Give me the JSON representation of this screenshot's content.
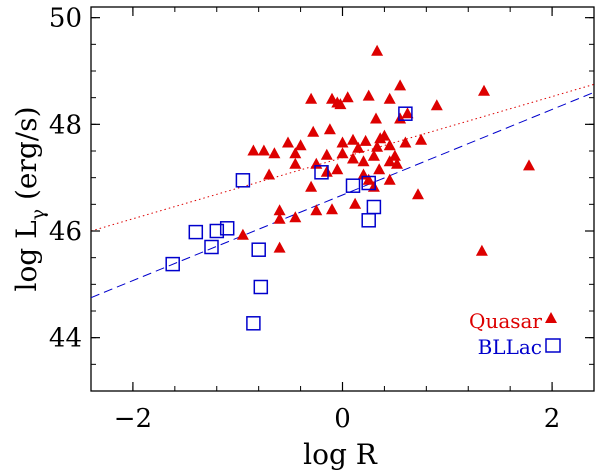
{
  "chart_data": {
    "type": "scatter",
    "xlabel": "log R",
    "ylabel_main": "log L",
    "ylabel_sub": "γ",
    "ylabel_unit": " (erg/s)",
    "xlim": [
      -2.4,
      2.4
    ],
    "ylim": [
      43,
      50.2
    ],
    "x_ticks": [
      -2,
      0,
      2
    ],
    "x_tick_labels": [
      "−2",
      "0",
      "2"
    ],
    "y_ticks": [
      44,
      46,
      48,
      50
    ],
    "y_tick_labels": [
      "44",
      "46",
      "48",
      "50"
    ],
    "colors": {
      "quasar": "#dd0000",
      "bllac": "#0000cc"
    },
    "legend_position": "bottom-right",
    "series": [
      {
        "name": "Quasar",
        "marker": "triangle",
        "points": [
          [
            0.33,
            49.37
          ],
          [
            0.55,
            48.72
          ],
          [
            1.35,
            48.62
          ],
          [
            0.45,
            48.47
          ],
          [
            0.9,
            48.35
          ],
          [
            -0.3,
            48.47
          ],
          [
            -0.1,
            48.47
          ],
          [
            0.05,
            48.5
          ],
          [
            0.25,
            48.53
          ],
          [
            -0.05,
            48.4
          ],
          [
            -0.02,
            48.37
          ],
          [
            0.62,
            48.2
          ],
          [
            0.32,
            48.1
          ],
          [
            0.55,
            48.1
          ],
          [
            -0.52,
            47.65
          ],
          [
            -0.4,
            47.6
          ],
          [
            -0.28,
            47.85
          ],
          [
            -0.12,
            47.9
          ],
          [
            0.0,
            47.65
          ],
          [
            0.1,
            47.7
          ],
          [
            0.15,
            47.55
          ],
          [
            0.22,
            47.68
          ],
          [
            0.33,
            47.57
          ],
          [
            0.36,
            47.73
          ],
          [
            0.4,
            47.78
          ],
          [
            0.45,
            47.6
          ],
          [
            0.6,
            47.65
          ],
          [
            0.75,
            47.7
          ],
          [
            -0.85,
            47.5
          ],
          [
            -0.75,
            47.5
          ],
          [
            -0.65,
            47.45
          ],
          [
            -0.45,
            47.45
          ],
          [
            -0.15,
            47.42
          ],
          [
            0.0,
            47.45
          ],
          [
            0.1,
            47.35
          ],
          [
            0.2,
            47.3
          ],
          [
            0.3,
            47.4
          ],
          [
            0.5,
            47.4
          ],
          [
            -0.45,
            47.25
          ],
          [
            -0.25,
            47.25
          ],
          [
            -0.05,
            47.15
          ],
          [
            0.2,
            47.05
          ],
          [
            0.35,
            47.15
          ],
          [
            0.45,
            47.3
          ],
          [
            0.52,
            47.25
          ],
          [
            -0.7,
            47.05
          ],
          [
            -0.15,
            47.1
          ],
          [
            0.25,
            46.95
          ],
          [
            0.3,
            46.82
          ],
          [
            0.45,
            46.95
          ],
          [
            1.78,
            47.22
          ],
          [
            -0.3,
            46.82
          ],
          [
            -0.6,
            46.38
          ],
          [
            -0.6,
            46.22
          ],
          [
            -0.45,
            46.25
          ],
          [
            -0.25,
            46.38
          ],
          [
            -0.1,
            46.4
          ],
          [
            0.12,
            46.5
          ],
          [
            -0.95,
            45.92
          ],
          [
            -0.6,
            45.68
          ],
          [
            0.72,
            46.68
          ],
          [
            1.33,
            45.62
          ]
        ]
      },
      {
        "name": "BLLac",
        "marker": "square",
        "points": [
          [
            0.6,
            48.2
          ],
          [
            -0.95,
            46.95
          ],
          [
            -0.2,
            47.1
          ],
          [
            0.1,
            46.85
          ],
          [
            0.25,
            46.9
          ],
          [
            0.3,
            46.45
          ],
          [
            0.25,
            46.2
          ],
          [
            -1.1,
            46.05
          ],
          [
            -1.2,
            46.0
          ],
          [
            -1.4,
            45.98
          ],
          [
            -1.25,
            45.7
          ],
          [
            -0.8,
            45.65
          ],
          [
            -1.62,
            45.38
          ],
          [
            -0.78,
            44.95
          ],
          [
            -0.85,
            44.27
          ]
        ]
      }
    ],
    "fit_lines": [
      {
        "name": "Quasar fit",
        "style": "dotted",
        "x": [
          -2.4,
          2.4
        ],
        "y": [
          46.0,
          48.75
        ]
      },
      {
        "name": "BLLac fit",
        "style": "dashed",
        "x": [
          -2.4,
          2.4
        ],
        "y": [
          44.75,
          48.6
        ]
      }
    ]
  }
}
